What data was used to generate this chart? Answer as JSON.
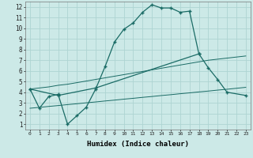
{
  "xlabel": "Humidex (Indice chaleur)",
  "background_color": "#cce9e7",
  "grid_color": "#aed4d2",
  "line_color": "#1a6b65",
  "x": [
    0,
    1,
    2,
    3,
    4,
    5,
    6,
    7,
    8,
    9,
    10,
    11,
    12,
    13,
    14,
    15,
    16,
    17,
    18,
    19,
    20,
    21,
    22,
    23
  ],
  "line1_y": [
    4.3,
    2.5,
    3.6,
    3.8,
    1.0,
    1.8,
    2.6,
    4.3,
    6.4,
    8.7,
    9.9,
    10.5,
    11.5,
    12.2,
    11.9,
    11.9,
    11.5,
    11.6,
    7.6,
    null,
    null,
    null,
    null,
    null
  ],
  "line2_y": [
    4.3,
    null,
    null,
    3.7,
    null,
    null,
    null,
    4.4,
    null,
    null,
    null,
    null,
    null,
    null,
    null,
    null,
    null,
    null,
    7.6,
    6.3,
    5.2,
    4.0,
    null,
    3.7
  ],
  "line3_y": [
    4.3,
    4.4,
    4.5,
    4.65,
    4.75,
    4.9,
    5.05,
    5.2,
    5.35,
    5.5,
    5.65,
    5.8,
    5.95,
    6.1,
    6.25,
    6.4,
    6.55,
    6.7,
    6.85,
    7.0,
    7.1,
    7.2,
    7.3,
    7.4
  ],
  "line4_y": [
    2.5,
    2.58,
    2.67,
    2.75,
    2.84,
    2.92,
    3.01,
    3.09,
    3.18,
    3.26,
    3.35,
    3.43,
    3.52,
    3.6,
    3.69,
    3.77,
    3.86,
    3.94,
    4.03,
    4.11,
    4.2,
    4.28,
    4.37,
    4.46
  ],
  "xlim": [
    -0.5,
    23.5
  ],
  "ylim": [
    0.5,
    12.5
  ],
  "xticks": [
    0,
    1,
    2,
    3,
    4,
    5,
    6,
    7,
    8,
    9,
    10,
    11,
    12,
    13,
    14,
    15,
    16,
    17,
    18,
    19,
    20,
    21,
    22,
    23
  ],
  "yticks": [
    1,
    2,
    3,
    4,
    5,
    6,
    7,
    8,
    9,
    10,
    11,
    12
  ]
}
